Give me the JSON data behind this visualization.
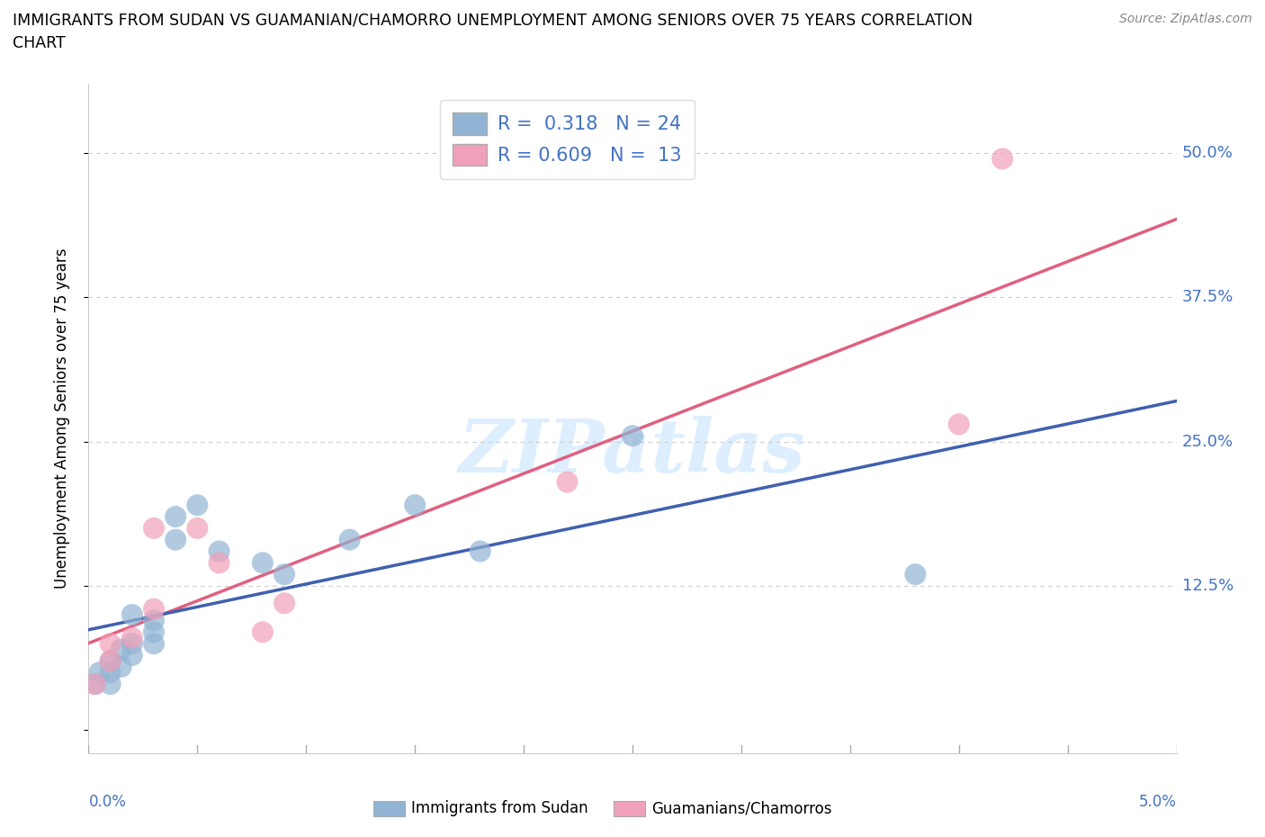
{
  "title_line1": "IMMIGRANTS FROM SUDAN VS GUAMANIAN/CHAMORRO UNEMPLOYMENT AMONG SENIORS OVER 75 YEARS CORRELATION",
  "title_line2": "CHART",
  "source": "Source: ZipAtlas.com",
  "ylabel": "Unemployment Among Seniors over 75 years",
  "yticks": [
    0.0,
    0.125,
    0.25,
    0.375,
    0.5
  ],
  "ytick_labels": [
    "",
    "12.5%",
    "25.0%",
    "37.5%",
    "50.0%"
  ],
  "xlim": [
    0.0,
    0.05
  ],
  "ylim": [
    -0.02,
    0.56
  ],
  "sudan_color": "#92b4d4",
  "guam_color": "#f0a0b8",
  "sudan_line_color": "#4060b0",
  "guam_line_color": "#e06080",
  "sudan_R": 0.318,
  "sudan_N": 24,
  "guam_R": 0.609,
  "guam_N": 13,
  "legend_label_blue": "Immigrants from Sudan",
  "legend_label_pink": "Guamanians/Chamorros",
  "watermark": "ZIPatlas",
  "sudan_x": [
    0.0003,
    0.0005,
    0.001,
    0.001,
    0.001,
    0.0015,
    0.0015,
    0.002,
    0.002,
    0.002,
    0.003,
    0.003,
    0.003,
    0.004,
    0.004,
    0.005,
    0.006,
    0.008,
    0.009,
    0.012,
    0.015,
    0.018,
    0.025,
    0.038
  ],
  "sudan_y": [
    0.04,
    0.05,
    0.04,
    0.05,
    0.06,
    0.055,
    0.07,
    0.065,
    0.075,
    0.1,
    0.095,
    0.085,
    0.075,
    0.165,
    0.185,
    0.195,
    0.155,
    0.145,
    0.135,
    0.165,
    0.195,
    0.155,
    0.255,
    0.135
  ],
  "guam_x": [
    0.0003,
    0.001,
    0.001,
    0.002,
    0.003,
    0.003,
    0.005,
    0.006,
    0.008,
    0.009,
    0.022,
    0.04,
    0.042
  ],
  "guam_y": [
    0.04,
    0.06,
    0.075,
    0.08,
    0.105,
    0.175,
    0.175,
    0.145,
    0.085,
    0.11,
    0.215,
    0.265,
    0.495
  ]
}
